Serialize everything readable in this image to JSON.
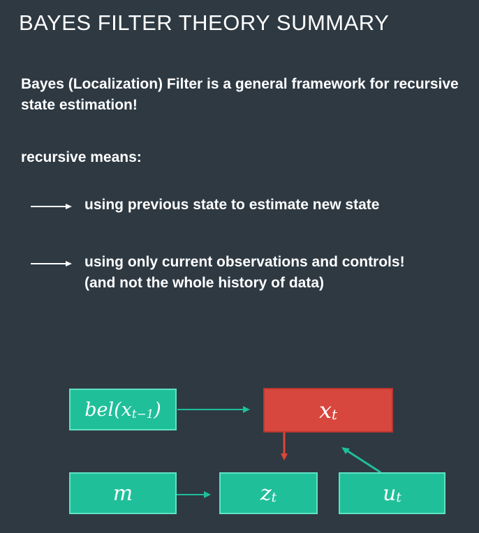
{
  "slide": {
    "title": "BAYES FILTER THEORY SUMMARY",
    "intro": "Bayes (Localization) Filter is a general framework for recursive state estimation!",
    "recursive_label": "recursive means:",
    "bullets": [
      {
        "text": "using previous state to estimate new state"
      },
      {
        "text": "using only current observations and controls!",
        "text2": "(and not the whole history of data)"
      }
    ]
  },
  "diagram": {
    "nodes": {
      "bel": {
        "base": "bel(x",
        "sub": "t−1",
        "close": ")"
      },
      "xt": {
        "base": "x",
        "sub": "t"
      },
      "m": {
        "base": "m"
      },
      "zt": {
        "base": "z",
        "sub": "t"
      },
      "ut": {
        "base": "u",
        "sub": "t"
      }
    },
    "colors": {
      "teal": "#1fbf9a",
      "teal_border": "#5fe2c4",
      "red": "#d8473e",
      "arrow_red": "#e0443a",
      "background": "#2e3942"
    }
  }
}
